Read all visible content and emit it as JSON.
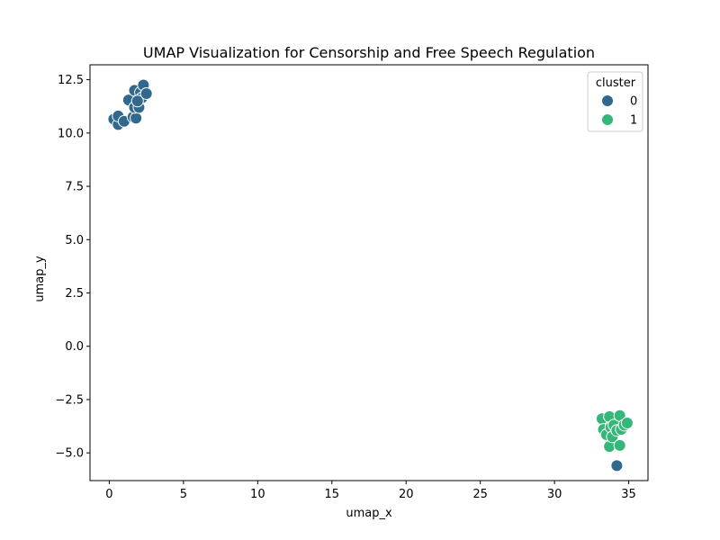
{
  "chart_data": {
    "type": "scatter",
    "title": "UMAP Visualization for Censorship and Free Speech Regulation",
    "xlabel": "umap_x",
    "ylabel": "umap_y",
    "xlim": [
      -1.3,
      36.3
    ],
    "ylim": [
      -6.3,
      13.2
    ],
    "xticks": [
      0,
      5,
      10,
      15,
      20,
      25,
      30,
      35
    ],
    "yticks": [
      -5.0,
      -2.5,
      0.0,
      2.5,
      5.0,
      7.5,
      10.0,
      12.5
    ],
    "ytick_labels": [
      "−5.0",
      "−2.5",
      "0.0",
      "2.5",
      "5.0",
      "7.5",
      "10.0",
      "12.5"
    ],
    "grid": false,
    "legend": {
      "title": "cluster",
      "placement": "top-right",
      "entries": [
        {
          "label": "0",
          "color": "#31688e"
        },
        {
          "label": "1",
          "color": "#35b779"
        }
      ]
    },
    "series": [
      {
        "name": "0",
        "color": "#31688e",
        "points": [
          [
            0.3,
            10.65
          ],
          [
            0.6,
            10.4
          ],
          [
            0.6,
            10.8
          ],
          [
            1.0,
            10.55
          ],
          [
            1.3,
            11.55
          ],
          [
            1.6,
            10.75
          ],
          [
            1.7,
            12.0
          ],
          [
            1.8,
            10.7
          ],
          [
            1.7,
            11.2
          ],
          [
            2.0,
            11.2
          ],
          [
            2.1,
            11.9
          ],
          [
            2.2,
            11.65
          ],
          [
            2.3,
            12.25
          ],
          [
            2.5,
            11.85
          ],
          [
            1.9,
            11.5
          ],
          [
            34.2,
            -5.6
          ]
        ]
      },
      {
        "name": "1",
        "color": "#35b779",
        "points": [
          [
            33.2,
            -3.4
          ],
          [
            33.3,
            -3.9
          ],
          [
            33.5,
            -4.15
          ],
          [
            33.7,
            -4.7
          ],
          [
            33.7,
            -3.3
          ],
          [
            33.8,
            -3.8
          ],
          [
            33.9,
            -4.25
          ],
          [
            34.0,
            -3.7
          ],
          [
            34.2,
            -3.95
          ],
          [
            34.4,
            -3.25
          ],
          [
            34.4,
            -4.65
          ],
          [
            34.5,
            -3.9
          ],
          [
            34.7,
            -3.7
          ],
          [
            34.9,
            -3.6
          ]
        ]
      }
    ]
  }
}
